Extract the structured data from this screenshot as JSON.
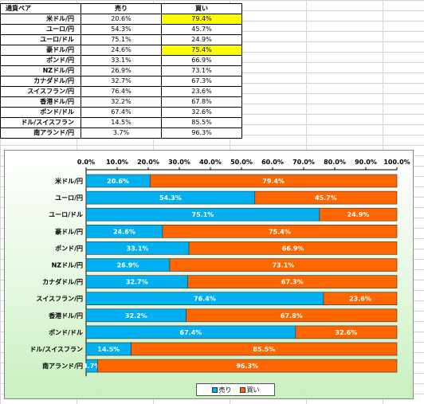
{
  "table": {
    "headers": [
      "通貨ペア",
      "売り",
      "買い"
    ],
    "rows": [
      {
        "pair": "米ドル/円",
        "sell": "20.6%",
        "buy": "79.4%",
        "highlight": true
      },
      {
        "pair": "ユーロ/円",
        "sell": "54.3%",
        "buy": "45.7%",
        "highlight": false
      },
      {
        "pair": "ユーロ/ドル",
        "sell": "75.1%",
        "buy": "24.9%",
        "highlight": false
      },
      {
        "pair": "豪ドル/円",
        "sell": "24.6%",
        "buy": "75.4%",
        "highlight": true
      },
      {
        "pair": "ポンド/円",
        "sell": "33.1%",
        "buy": "66.9%",
        "highlight": false
      },
      {
        "pair": "NZドル/円",
        "sell": "26.9%",
        "buy": "73.1%",
        "highlight": false
      },
      {
        "pair": "カナダドル/円",
        "sell": "32.7%",
        "buy": "67.3%",
        "highlight": false
      },
      {
        "pair": "スイスフラン/円",
        "sell": "76.4%",
        "buy": "23.6%",
        "highlight": false
      },
      {
        "pair": "香港ドル/円",
        "sell": "32.2%",
        "buy": "67.8%",
        "highlight": false
      },
      {
        "pair": "ポンド/ドル",
        "sell": "67.4%",
        "buy": "32.6%",
        "highlight": false
      },
      {
        "pair": "ドル/スイスフラン",
        "sell": "14.5%",
        "buy": "85.5%",
        "highlight": false
      },
      {
        "pair": "南アランド/円",
        "sell": "3.7%",
        "buy": "96.3%",
        "highlight": false
      }
    ],
    "highlight_color": "#ffff00"
  },
  "chart_data": {
    "type": "bar",
    "stacked": "percent",
    "orientation": "horizontal",
    "categories": [
      "米ドル/円",
      "ユーロ/円",
      "ユーロ/ドル",
      "豪ドル/円",
      "ポンド/円",
      "NZドル/円",
      "カナダドル/円",
      "スイスフラン/円",
      "香港ドル/円",
      "ポンド/ドル",
      "ドル/スイスフラン",
      "南アランド/円"
    ],
    "series": [
      {
        "name": "売り",
        "color": "#00b0f0",
        "values": [
          20.6,
          54.3,
          75.1,
          24.6,
          33.1,
          26.9,
          32.7,
          76.4,
          32.2,
          67.4,
          14.5,
          3.7
        ]
      },
      {
        "name": "買い",
        "color": "#ff6600",
        "values": [
          79.4,
          45.7,
          24.9,
          75.4,
          66.9,
          73.1,
          67.3,
          23.6,
          67.8,
          32.6,
          85.5,
          96.3
        ]
      }
    ],
    "xticks": [
      "0.0%",
      "10.0%",
      "20.0%",
      "30.0%",
      "40.0%",
      "50.0%",
      "60.0%",
      "70.0%",
      "80.0%",
      "90.0%",
      "100.0%"
    ],
    "xlim": [
      0,
      100
    ],
    "x_axis_position": "top",
    "legend_position": "bottom",
    "grid": false
  }
}
